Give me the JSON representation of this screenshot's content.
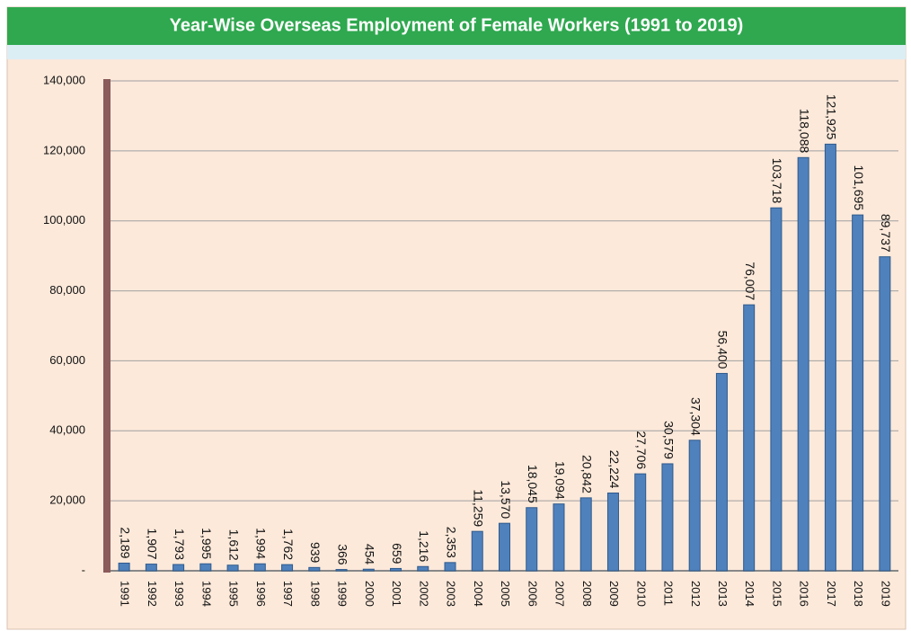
{
  "chart_data": {
    "type": "bar",
    "title": "Year-Wise Overseas Employment of Female Workers  (1991 to 2019)",
    "categories": [
      "1991",
      "1992",
      "1993",
      "1994",
      "1995",
      "1996",
      "1997",
      "1998",
      "1999",
      "2000",
      "2001",
      "2002",
      "2003",
      "2004",
      "2005",
      "2006",
      "2007",
      "2008",
      "2009",
      "2010",
      "2011",
      "2012",
      "2013",
      "2014",
      "2015",
      "2016",
      "2017",
      "2018",
      "2019"
    ],
    "values": [
      2189,
      1907,
      1793,
      1995,
      1612,
      1994,
      1762,
      939,
      366,
      454,
      659,
      1216,
      2353,
      11259,
      13570,
      18045,
      19094,
      20842,
      22224,
      27706,
      30579,
      37304,
      56400,
      76007,
      103718,
      118088,
      121925,
      101695,
      89737
    ],
    "value_labels": [
      "2,189",
      "1,907",
      "1,793",
      "1,995",
      "1,612",
      "1,994",
      "1,762",
      "939",
      "366",
      "454",
      "659",
      "1,216",
      "2,353",
      "11,259",
      "13,570",
      "18,045",
      "19,094",
      "20,842",
      "22,224",
      "27,706",
      "30,579",
      "37,304",
      "56,400",
      "76,007",
      "103,718",
      "118,088",
      "121,925",
      "101,695",
      "89,737"
    ],
    "color": "#4f81bd",
    "ylim": [
      0,
      140000
    ],
    "yticks": [
      {
        "value": 0,
        "label": "-"
      },
      {
        "value": 20000,
        "label": "20,000"
      },
      {
        "value": 40000,
        "label": "40,000"
      },
      {
        "value": 60000,
        "label": "60,000"
      },
      {
        "value": 80000,
        "label": "80,000"
      },
      {
        "value": 100000,
        "label": "100,000"
      },
      {
        "value": 120000,
        "label": "120,000"
      },
      {
        "value": 140000,
        "label": "140,000"
      }
    ],
    "grid": true
  }
}
